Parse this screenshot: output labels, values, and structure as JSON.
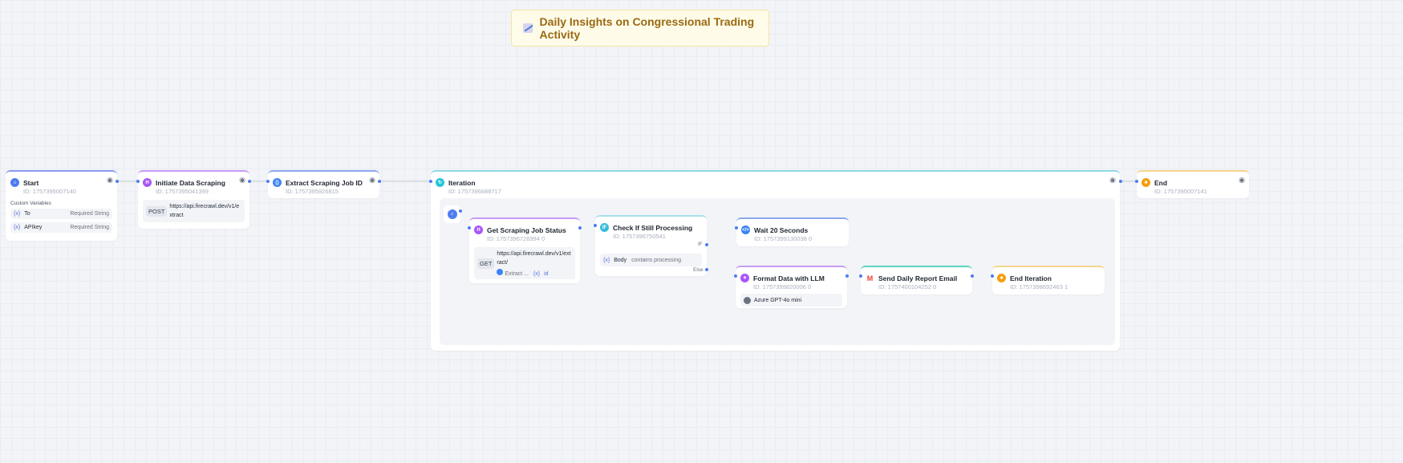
{
  "note": {
    "title": "Daily Insights on Congressional Trading Activity",
    "icon": "chart-line-icon"
  },
  "nodes": {
    "start": {
      "title": "Start",
      "id": "ID: 1757395007140",
      "section": "Custom Variables",
      "vars": [
        {
          "name": "To",
          "type": "Required String"
        },
        {
          "name": "APIkey",
          "type": "Required String"
        }
      ]
    },
    "initiate": {
      "title": "Initiate Data Scraping",
      "id": "ID: 1757395041399",
      "method": "POST",
      "url": "https://api.firecrawl.dev/v1/extract"
    },
    "extract": {
      "title": "Extract Scraping Job ID",
      "id": "ID: 1757395926815"
    },
    "iteration": {
      "title": "Iteration",
      "id": "ID: 1757396688717"
    },
    "get_status": {
      "title": "Get Scraping Job Status",
      "id": "ID: 1757396726994 0",
      "method": "GET",
      "url": "https://api.firecrawl.dev/v1/extract/",
      "ref_node": "Extract ...",
      "ref_var": "id"
    },
    "check": {
      "title": "Check If Still Processing",
      "id": "ID: 1757396750541",
      "if_label": "IF",
      "else_label": "Else",
      "cond_var": "Body",
      "cond_text": "contains processing"
    },
    "wait": {
      "title": "Wait 20 Seconds",
      "id": "ID: 1757399130038 0"
    },
    "format": {
      "title": "Format Data with LLM",
      "id": "ID: 1757399820006 0",
      "model": "Azure GPT-4o mini"
    },
    "send": {
      "title": "Send Daily Report Email",
      "id": "ID: 1757400104252 0"
    },
    "end_iter": {
      "title": "End Iteration",
      "id": "ID: 1757398692463 1"
    },
    "end": {
      "title": "End",
      "id": "ID: 1757395007141"
    }
  },
  "colors": {
    "start": "#4f7cf0",
    "http": "#a855f7",
    "code": "#3b82f6",
    "iteration": "#22c5d8",
    "if": "#38bdd8",
    "llm": "#a855f7",
    "email": "#2dd4bf",
    "end": "#f59e0b"
  }
}
